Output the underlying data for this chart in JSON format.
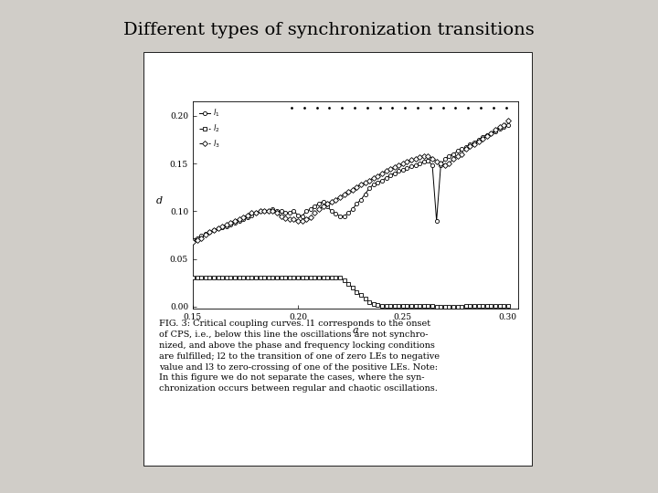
{
  "title": "Different types of synchronization transitions",
  "title_fontsize": 14,
  "background_color": "#d0cdc8",
  "plot_bg_color": "#ffffff",
  "xlabel": "a",
  "ylabel": "d",
  "xlim": [
    0.15,
    0.305
  ],
  "ylim": [
    -0.002,
    0.215
  ],
  "xticks": [
    0.15,
    0.2,
    0.25,
    0.3
  ],
  "yticks": [
    0.0,
    0.05,
    0.1,
    0.15,
    0.2
  ],
  "caption": "FIG. 3: Critical coupling curves. l1 corresponds to the onset\nof CPS, i.e., below this line the oscillations are not synchro-\nnized, and above the phase and frequency locking conditions\nare fulfilled; l2 to the transition of one of zero LEs to negative\nvalue and l3 to zero-crossing of one of the positive LEs. Note:\nIn this figure we do not separate the cases, where the syn-\nchronization occurs between regular and chaotic oscillations.",
  "caption_fontsize": 7.0,
  "l1_x": [
    0.15,
    0.152,
    0.154,
    0.156,
    0.158,
    0.16,
    0.162,
    0.164,
    0.166,
    0.168,
    0.17,
    0.172,
    0.174,
    0.176,
    0.178,
    0.18,
    0.182,
    0.184,
    0.186,
    0.188,
    0.19,
    0.192,
    0.194,
    0.196,
    0.198,
    0.2,
    0.202,
    0.204,
    0.206,
    0.208,
    0.21,
    0.212,
    0.214,
    0.216,
    0.218,
    0.22,
    0.222,
    0.224,
    0.226,
    0.228,
    0.23,
    0.232,
    0.234,
    0.236,
    0.238,
    0.24,
    0.242,
    0.244,
    0.246,
    0.248,
    0.25,
    0.252,
    0.254,
    0.256,
    0.258,
    0.26,
    0.262,
    0.264,
    0.266,
    0.268,
    0.27,
    0.272,
    0.274,
    0.276,
    0.278,
    0.28,
    0.282,
    0.284,
    0.286,
    0.288,
    0.29,
    0.292,
    0.294,
    0.296,
    0.298,
    0.3
  ],
  "l1_y": [
    0.07,
    0.072,
    0.074,
    0.076,
    0.078,
    0.08,
    0.082,
    0.083,
    0.084,
    0.086,
    0.088,
    0.09,
    0.092,
    0.094,
    0.096,
    0.098,
    0.1,
    0.1,
    0.1,
    0.102,
    0.1,
    0.1,
    0.098,
    0.098,
    0.1,
    0.096,
    0.095,
    0.1,
    0.102,
    0.105,
    0.108,
    0.11,
    0.105,
    0.1,
    0.097,
    0.095,
    0.095,
    0.098,
    0.102,
    0.108,
    0.112,
    0.118,
    0.124,
    0.128,
    0.13,
    0.132,
    0.135,
    0.138,
    0.14,
    0.142,
    0.143,
    0.145,
    0.147,
    0.148,
    0.15,
    0.152,
    0.153,
    0.148,
    0.09,
    0.148,
    0.155,
    0.158,
    0.16,
    0.163,
    0.165,
    0.167,
    0.17,
    0.172,
    0.175,
    0.178,
    0.18,
    0.182,
    0.184,
    0.186,
    0.188,
    0.19
  ],
  "l2_x": [
    0.15,
    0.152,
    0.154,
    0.156,
    0.158,
    0.16,
    0.162,
    0.164,
    0.166,
    0.168,
    0.17,
    0.172,
    0.174,
    0.176,
    0.178,
    0.18,
    0.182,
    0.184,
    0.186,
    0.188,
    0.19,
    0.192,
    0.194,
    0.196,
    0.198,
    0.2,
    0.202,
    0.204,
    0.206,
    0.208,
    0.21,
    0.212,
    0.214,
    0.216,
    0.218,
    0.22,
    0.222,
    0.224,
    0.226,
    0.228,
    0.23,
    0.232,
    0.234,
    0.236,
    0.238,
    0.24,
    0.242,
    0.244,
    0.246,
    0.248,
    0.25,
    0.252,
    0.254,
    0.256,
    0.258,
    0.26,
    0.262,
    0.264,
    0.266,
    0.268,
    0.27,
    0.272,
    0.274,
    0.276,
    0.278,
    0.28,
    0.282,
    0.284,
    0.286,
    0.288,
    0.29,
    0.292,
    0.294,
    0.296,
    0.298,
    0.3
  ],
  "l2_y": [
    0.03,
    0.03,
    0.03,
    0.03,
    0.03,
    0.03,
    0.03,
    0.03,
    0.03,
    0.03,
    0.03,
    0.03,
    0.03,
    0.03,
    0.03,
    0.03,
    0.03,
    0.03,
    0.03,
    0.03,
    0.03,
    0.03,
    0.03,
    0.03,
    0.03,
    0.03,
    0.03,
    0.03,
    0.03,
    0.03,
    0.03,
    0.03,
    0.03,
    0.03,
    0.03,
    0.03,
    0.028,
    0.024,
    0.02,
    0.015,
    0.012,
    0.008,
    0.005,
    0.003,
    0.002,
    0.001,
    0.001,
    0.001,
    0.001,
    0.001,
    0.001,
    0.001,
    0.001,
    0.001,
    0.001,
    0.001,
    0.001,
    0.001,
    0.0,
    0.0,
    0.0,
    0.0,
    0.0,
    0.0,
    0.0,
    0.001,
    0.001,
    0.001,
    0.001,
    0.001,
    0.001,
    0.001,
    0.001,
    0.001,
    0.001,
    0.001
  ],
  "l3_x": [
    0.15,
    0.152,
    0.154,
    0.156,
    0.158,
    0.16,
    0.162,
    0.164,
    0.166,
    0.168,
    0.17,
    0.172,
    0.174,
    0.176,
    0.178,
    0.18,
    0.182,
    0.184,
    0.186,
    0.188,
    0.19,
    0.192,
    0.194,
    0.196,
    0.198,
    0.2,
    0.202,
    0.204,
    0.206,
    0.208,
    0.21,
    0.212,
    0.214,
    0.216,
    0.218,
    0.22,
    0.222,
    0.224,
    0.226,
    0.228,
    0.23,
    0.232,
    0.234,
    0.236,
    0.238,
    0.24,
    0.242,
    0.244,
    0.246,
    0.248,
    0.25,
    0.252,
    0.254,
    0.256,
    0.258,
    0.26,
    0.262,
    0.264,
    0.266,
    0.268,
    0.27,
    0.272,
    0.274,
    0.276,
    0.278,
    0.28,
    0.282,
    0.284,
    0.286,
    0.288,
    0.29,
    0.292,
    0.294,
    0.296,
    0.298,
    0.3
  ],
  "l3_y": [
    0.068,
    0.07,
    0.072,
    0.075,
    0.078,
    0.08,
    0.082,
    0.084,
    0.086,
    0.088,
    0.09,
    0.092,
    0.094,
    0.096,
    0.098,
    0.098,
    0.1,
    0.1,
    0.1,
    0.1,
    0.098,
    0.095,
    0.093,
    0.092,
    0.092,
    0.09,
    0.09,
    0.092,
    0.094,
    0.098,
    0.102,
    0.105,
    0.108,
    0.11,
    0.112,
    0.115,
    0.118,
    0.12,
    0.122,
    0.125,
    0.128,
    0.13,
    0.132,
    0.135,
    0.137,
    0.14,
    0.142,
    0.144,
    0.146,
    0.148,
    0.15,
    0.152,
    0.154,
    0.155,
    0.157,
    0.158,
    0.158,
    0.155,
    0.152,
    0.15,
    0.148,
    0.15,
    0.155,
    0.158,
    0.16,
    0.165,
    0.168,
    0.17,
    0.173,
    0.176,
    0.179,
    0.182,
    0.185,
    0.188,
    0.19,
    0.195
  ],
  "dots_x": [
    0.197,
    0.203,
    0.209,
    0.215,
    0.221,
    0.227,
    0.233,
    0.239,
    0.245,
    0.251,
    0.257,
    0.263,
    0.269,
    0.275,
    0.281,
    0.287,
    0.293,
    0.299
  ],
  "dots_y": [
    0.208,
    0.208,
    0.208,
    0.208,
    0.208,
    0.208,
    0.208,
    0.208,
    0.208,
    0.208,
    0.208,
    0.208,
    0.208,
    0.208,
    0.208,
    0.208,
    0.208,
    0.208
  ]
}
